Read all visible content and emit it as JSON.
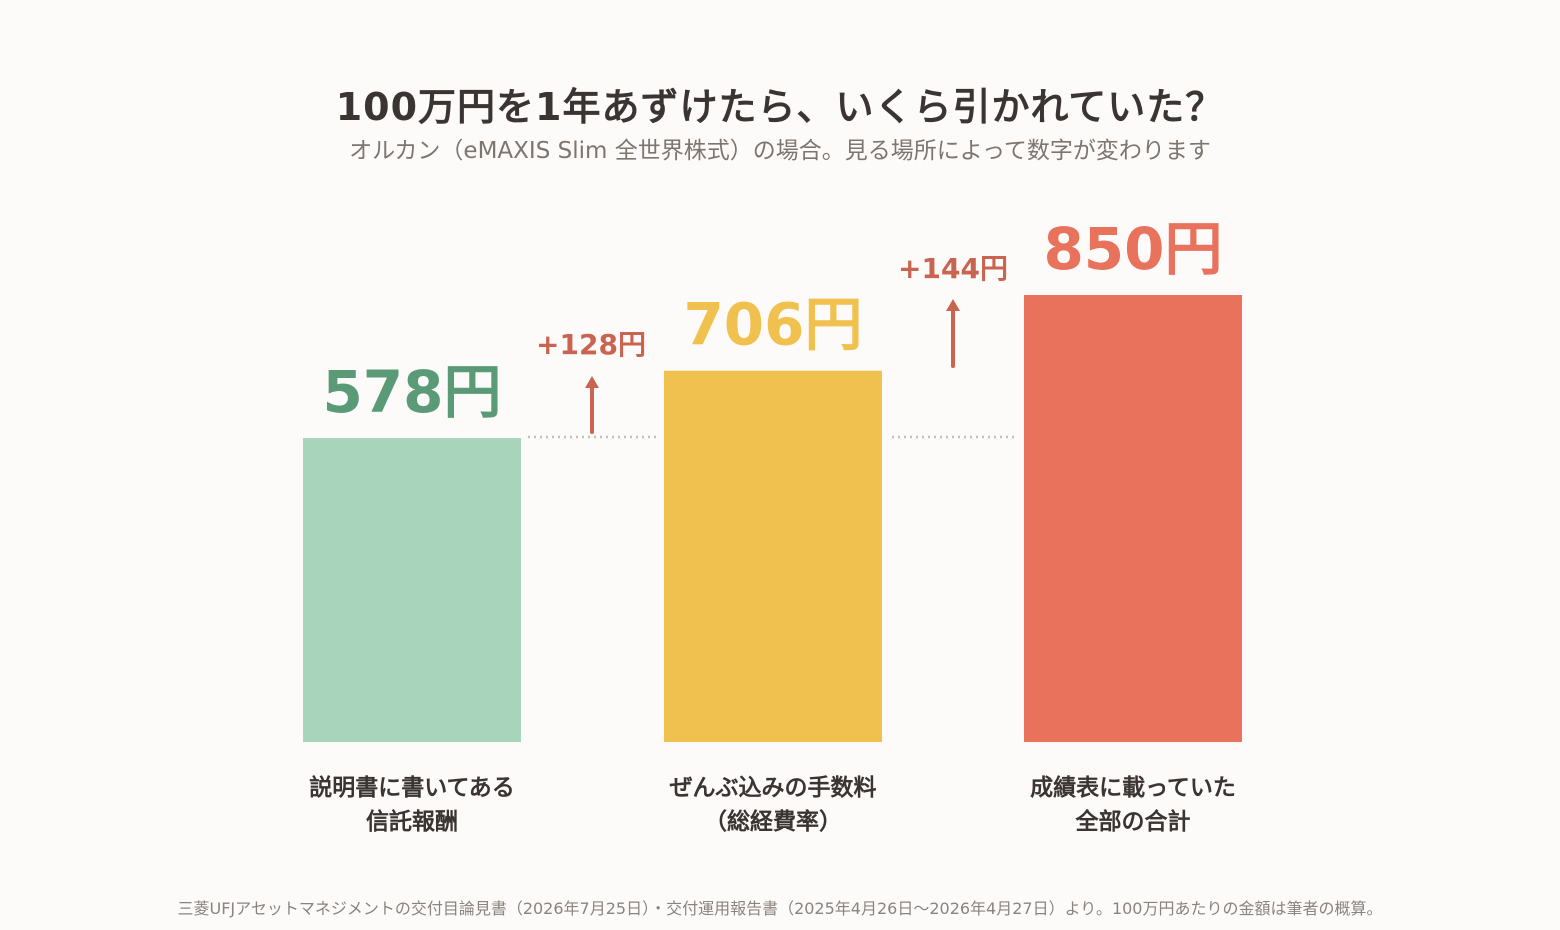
{
  "title": "100万円を1年あずけたら、いくら引かれていた？",
  "subtitle": "オルカン（eMAXIS Slim 全世界株式）の場合。見る場所によって数字が変わります",
  "footnote": "三菱UFJアセットマネジメントの交付目論見書（2026年7月25日）・交付運用報告書（2025年4月26日〜2026年4月27日）より。100万円あたりの金額は筆者の概算。",
  "colors": {
    "bar1": "#a8d4bb",
    "bar1_label": "#5a9a76",
    "bar2": "#f1c14f",
    "bar2_label": "#f1c14f",
    "bar3": "#e8725c",
    "bar3_label": "#e8725c",
    "delta": "#c96450",
    "dotted": "#c4bfba"
  },
  "chart_data": {
    "type": "bar",
    "unit": "円",
    "categories": [
      [
        "説明書に書いてある",
        "信託報酬"
      ],
      [
        "ぜんぶ込みの手数料",
        "（総経費率）"
      ],
      [
        "成績表に載っていた",
        "全部の合計"
      ]
    ],
    "values": [
      578,
      706,
      850
    ],
    "value_labels": [
      "578円",
      "706円",
      "850円"
    ],
    "deltas": [
      {
        "between": [
          0,
          1
        ],
        "value": 128,
        "label": "+128円"
      },
      {
        "between": [
          1,
          2
        ],
        "value": 144,
        "label": "+144円"
      }
    ],
    "ylim": [
      0,
      850
    ],
    "grid": false,
    "legend": "none"
  }
}
